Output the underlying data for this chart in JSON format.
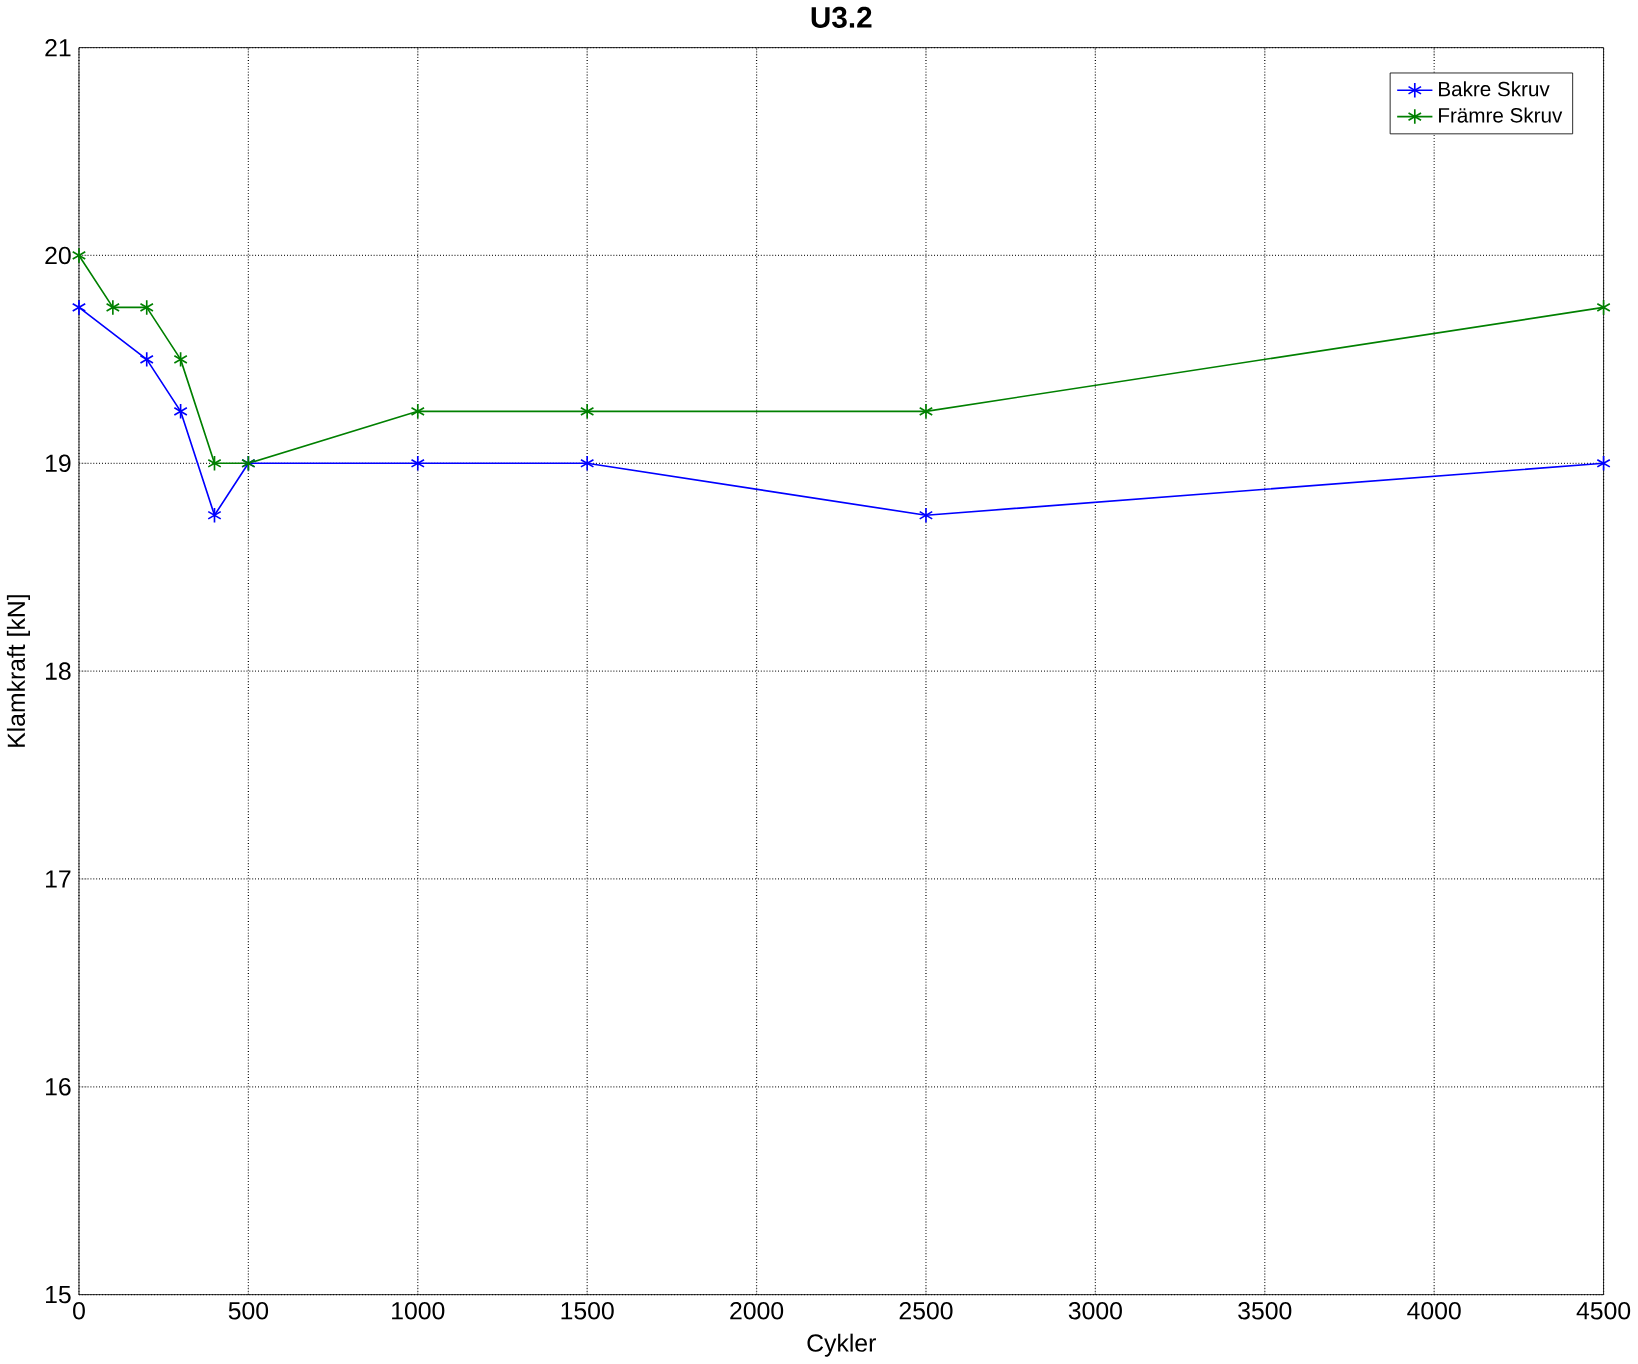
{
  "chart_data": {
    "type": "line",
    "title": "U3.2",
    "xlabel": "Cykler",
    "ylabel": "Klamkraft [kN]",
    "xlim": [
      0,
      4500
    ],
    "xticks": [
      0,
      500,
      1000,
      1500,
      2000,
      2500,
      3000,
      3500,
      4000,
      4500
    ],
    "ylim": [
      15,
      21
    ],
    "yticks": [
      15,
      16,
      17,
      18,
      19,
      20,
      21
    ],
    "grid": true,
    "legend": "top right",
    "marker": "cross",
    "line_style": "solid",
    "series": [
      {
        "name": "Bakre Skruv",
        "color": "#0000ff",
        "x": [
          0,
          200,
          300,
          400,
          500,
          1000,
          1500,
          2500,
          4500
        ],
        "values": [
          19.75,
          19.5,
          19.25,
          18.75,
          19.0,
          19.0,
          19.0,
          18.75,
          19.0
        ]
      },
      {
        "name": "Främre Skruv",
        "color": "#008000",
        "x": [
          0,
          100,
          200,
          300,
          400,
          500,
          1000,
          1500,
          2500,
          4500
        ],
        "values": [
          20.0,
          19.75,
          19.75,
          19.5,
          19.0,
          19.0,
          19.25,
          19.25,
          19.25,
          19.75
        ]
      }
    ]
  }
}
